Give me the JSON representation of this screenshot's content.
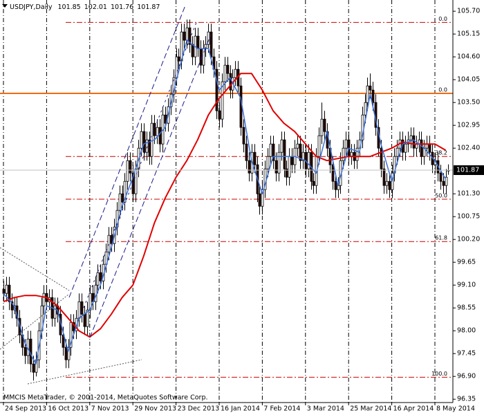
{
  "chart_data": {
    "type": "candlestick",
    "symbol": "USDJPY,Daily",
    "footer": "MMCIS MetaTrader, © 2001-2014, MetaQuotes Software Corp.",
    "xlim": [
      -1.28,
      166.67
    ],
    "ylim": [
      96.27,
      105.97
    ],
    "xticks": [
      {
        "value": 0,
        "label": "24 Sep 2013"
      },
      {
        "value": 16,
        "label": "16 Oct 2013"
      },
      {
        "value": 32,
        "label": "7 Nov 2013"
      },
      {
        "value": 48,
        "label": "29 Nov 2013"
      },
      {
        "value": 64,
        "label": "23 Dec 2013"
      },
      {
        "value": 80,
        "label": "16 Jan 2014"
      },
      {
        "value": 96,
        "label": "7 Feb 2014"
      },
      {
        "value": 112,
        "label": "3 Mar 2014"
      },
      {
        "value": 128,
        "label": "25 Mar 2014"
      },
      {
        "value": 144,
        "label": "16 Apr 2014"
      },
      {
        "value": 160,
        "label": "8 May 2014"
      }
    ],
    "yticks": [
      {
        "value": 105.7,
        "label": "105.70"
      },
      105.15,
      {
        "value": 104.6,
        "label": "104.60"
      },
      104.05,
      {
        "value": 103.5,
        "label": "103.50"
      },
      102.95,
      {
        "value": 102.4,
        "label": "102.40"
      },
      {
        "value": 101.3,
        "label": "101.30"
      },
      100.75,
      {
        "value": 100.2,
        "label": "100.20"
      },
      99.65,
      {
        "value": 99.1,
        "label": "99.10"
      },
      98.55,
      {
        "value": 98.0,
        "label": "98.00"
      },
      97.45,
      {
        "value": 96.9,
        "label": "96.90"
      },
      96.35
    ],
    "grid": "x",
    "up_color": "#ffffff",
    "down_color": "#2a0a00",
    "ohlc": [
      [
        99.0,
        99.2,
        98.7,
        98.9
      ],
      [
        98.9,
        99.3,
        98.7,
        99.1
      ],
      [
        99.1,
        99.3,
        98.5,
        98.7
      ],
      [
        98.7,
        98.9,
        98.3,
        98.5
      ],
      [
        98.5,
        98.8,
        98.4,
        98.6
      ],
      [
        98.6,
        98.8,
        98.1,
        98.3
      ],
      [
        98.3,
        98.5,
        97.7,
        97.9
      ],
      [
        97.9,
        98.1,
        97.4,
        97.6
      ],
      [
        97.6,
        97.8,
        97.2,
        97.4
      ],
      [
        97.4,
        98.0,
        97.2,
        97.8
      ],
      [
        97.8,
        98.0,
        97.0,
        97.2
      ],
      [
        97.2,
        97.4,
        96.8,
        97.0
      ],
      [
        97.0,
        97.5,
        96.9,
        97.3
      ],
      [
        97.3,
        98.2,
        97.1,
        98.0
      ],
      [
        98.0,
        98.8,
        97.8,
        98.6
      ],
      [
        98.6,
        99.1,
        98.4,
        98.9
      ],
      [
        98.9,
        99.1,
        98.5,
        98.7
      ],
      [
        98.7,
        99.0,
        98.5,
        98.8
      ],
      [
        98.8,
        99.0,
        98.1,
        98.3
      ],
      [
        98.3,
        98.8,
        98.1,
        98.6
      ],
      [
        98.6,
        98.8,
        98.2,
        98.4
      ],
      [
        98.4,
        98.6,
        97.7,
        97.9
      ],
      [
        97.9,
        98.1,
        97.4,
        97.6
      ],
      [
        97.6,
        97.8,
        97.1,
        97.3
      ],
      [
        97.3,
        97.8,
        97.1,
        97.6
      ],
      [
        97.6,
        98.4,
        97.4,
        98.2
      ],
      [
        98.2,
        98.4,
        97.8,
        98.0
      ],
      [
        98.0,
        98.5,
        97.8,
        98.3
      ],
      [
        98.3,
        98.9,
        98.1,
        98.7
      ],
      [
        98.7,
        98.9,
        98.2,
        98.4
      ],
      [
        98.4,
        98.6,
        97.9,
        98.1
      ],
      [
        98.1,
        98.7,
        97.9,
        98.5
      ],
      [
        98.5,
        99.1,
        98.3,
        98.9
      ],
      [
        98.9,
        99.1,
        98.5,
        98.7
      ],
      [
        98.7,
        99.3,
        98.5,
        99.1
      ],
      [
        99.1,
        99.6,
        98.9,
        99.4
      ],
      [
        99.4,
        99.6,
        99.0,
        99.2
      ],
      [
        99.2,
        99.8,
        99.0,
        99.6
      ],
      [
        99.6,
        100.1,
        99.4,
        99.9
      ],
      [
        99.9,
        100.5,
        99.7,
        100.3
      ],
      [
        100.3,
        100.5,
        99.9,
        100.1
      ],
      [
        100.1,
        100.7,
        99.9,
        100.5
      ],
      [
        100.5,
        101.1,
        100.3,
        100.9
      ],
      [
        100.9,
        101.5,
        100.7,
        101.3
      ],
      [
        101.3,
        101.5,
        100.9,
        101.1
      ],
      [
        101.1,
        101.8,
        100.9,
        101.6
      ],
      [
        101.6,
        102.3,
        101.4,
        102.1
      ],
      [
        102.1,
        102.3,
        101.6,
        101.8
      ],
      [
        101.8,
        102.0,
        101.1,
        101.3
      ],
      [
        101.3,
        102.1,
        101.1,
        101.9
      ],
      [
        101.9,
        102.6,
        101.7,
        102.4
      ],
      [
        102.4,
        103.0,
        102.2,
        102.8
      ],
      [
        102.8,
        103.0,
        102.1,
        102.3
      ],
      [
        102.3,
        102.8,
        102.1,
        102.6
      ],
      [
        102.6,
        102.8,
        102.0,
        102.2
      ],
      [
        102.2,
        103.2,
        102.0,
        103.0
      ],
      [
        103.0,
        103.2,
        102.5,
        102.7
      ],
      [
        102.7,
        103.1,
        102.5,
        102.9
      ],
      [
        102.9,
        103.1,
        102.3,
        102.5
      ],
      [
        102.5,
        103.4,
        102.3,
        103.2
      ],
      [
        103.2,
        103.4,
        102.8,
        103.0
      ],
      [
        103.0,
        103.6,
        102.8,
        103.4
      ],
      [
        103.4,
        103.9,
        103.2,
        103.7
      ],
      [
        103.7,
        104.3,
        103.5,
        104.1
      ],
      [
        104.1,
        104.8,
        103.9,
        104.6
      ],
      [
        104.6,
        104.8,
        104.3,
        104.5
      ],
      [
        104.5,
        105.4,
        104.3,
        105.2
      ],
      [
        105.2,
        105.4,
        104.8,
        105.0
      ],
      [
        105.0,
        105.5,
        104.8,
        105.3
      ],
      [
        105.3,
        105.5,
        104.7,
        104.9
      ],
      [
        104.9,
        105.1,
        104.4,
        104.6
      ],
      [
        104.6,
        105.3,
        104.4,
        105.1
      ],
      [
        105.1,
        105.3,
        104.6,
        104.8
      ],
      [
        104.8,
        105.0,
        104.2,
        104.4
      ],
      [
        104.4,
        105.0,
        104.2,
        104.8
      ],
      [
        104.8,
        105.1,
        104.6,
        104.9
      ],
      [
        104.9,
        105.4,
        104.7,
        105.2
      ],
      [
        105.2,
        105.4,
        104.4,
        104.6
      ],
      [
        104.6,
        104.8,
        104.1,
        104.3
      ],
      [
        104.3,
        104.5,
        103.1,
        103.3
      ],
      [
        103.3,
        103.5,
        102.9,
        103.1
      ],
      [
        103.1,
        104.2,
        102.9,
        104.0
      ],
      [
        104.0,
        104.6,
        103.8,
        104.4
      ],
      [
        104.4,
        104.6,
        104.0,
        104.2
      ],
      [
        104.2,
        104.4,
        103.6,
        103.8
      ],
      [
        103.8,
        104.3,
        103.6,
        104.1
      ],
      [
        104.1,
        104.5,
        103.9,
        104.3
      ],
      [
        104.3,
        104.5,
        103.7,
        103.9
      ],
      [
        103.9,
        104.1,
        102.7,
        102.9
      ],
      [
        102.9,
        103.1,
        102.3,
        102.5
      ],
      [
        102.5,
        102.7,
        101.9,
        102.1
      ],
      [
        102.1,
        102.3,
        101.6,
        101.8
      ],
      [
        101.8,
        102.5,
        101.6,
        102.3
      ],
      [
        102.3,
        102.5,
        101.8,
        102.0
      ],
      [
        102.0,
        102.2,
        101.1,
        101.3
      ],
      [
        101.3,
        101.5,
        100.8,
        101.0
      ],
      [
        101.0,
        101.6,
        100.8,
        101.4
      ],
      [
        101.4,
        102.1,
        101.2,
        101.9
      ],
      [
        101.9,
        102.4,
        101.7,
        102.2
      ],
      [
        102.2,
        102.7,
        102.0,
        102.5
      ],
      [
        102.5,
        102.7,
        101.9,
        102.1
      ],
      [
        102.1,
        102.3,
        101.6,
        101.8
      ],
      [
        101.8,
        102.5,
        101.6,
        102.3
      ],
      [
        102.3,
        102.8,
        102.1,
        102.6
      ],
      [
        102.6,
        102.8,
        101.7,
        101.9
      ],
      [
        101.9,
        102.1,
        101.5,
        101.7
      ],
      [
        101.7,
        102.4,
        101.5,
        102.2
      ],
      [
        102.2,
        102.4,
        101.8,
        102.0
      ],
      [
        102.0,
        102.6,
        101.8,
        102.4
      ],
      [
        102.4,
        102.7,
        102.2,
        102.5
      ],
      [
        102.5,
        102.7,
        101.9,
        102.1
      ],
      [
        102.1,
        102.5,
        101.9,
        102.3
      ],
      [
        102.3,
        102.5,
        101.7,
        101.9
      ],
      [
        101.9,
        102.5,
        101.7,
        102.3
      ],
      [
        102.3,
        102.5,
        101.4,
        101.6
      ],
      [
        101.6,
        101.8,
        101.3,
        101.5
      ],
      [
        101.5,
        102.4,
        101.3,
        102.2
      ],
      [
        102.2,
        102.9,
        102.0,
        102.7
      ],
      [
        102.7,
        103.5,
        102.5,
        103.1
      ],
      [
        103.1,
        103.3,
        102.6,
        102.8
      ],
      [
        102.8,
        103.0,
        102.2,
        102.4
      ],
      [
        102.4,
        102.6,
        101.8,
        102.0
      ],
      [
        102.0,
        102.2,
        101.4,
        101.6
      ],
      [
        101.6,
        101.8,
        101.2,
        101.4
      ],
      [
        101.4,
        101.7,
        101.2,
        101.5
      ],
      [
        101.5,
        102.3,
        101.3,
        102.1
      ],
      [
        102.1,
        102.6,
        101.9,
        102.4
      ],
      [
        102.4,
        102.8,
        102.2,
        102.6
      ],
      [
        102.6,
        102.8,
        102.0,
        102.2
      ],
      [
        102.2,
        102.5,
        102.0,
        102.3
      ],
      [
        102.3,
        102.5,
        101.9,
        102.1
      ],
      [
        102.1,
        102.6,
        101.9,
        102.4
      ],
      [
        102.4,
        102.8,
        102.2,
        102.6
      ],
      [
        102.6,
        103.4,
        102.4,
        103.2
      ],
      [
        103.2,
        103.7,
        103.0,
        103.5
      ],
      [
        103.5,
        104.1,
        103.3,
        103.9
      ],
      [
        103.9,
        104.2,
        103.6,
        103.8
      ],
      [
        103.8,
        104.0,
        103.3,
        103.5
      ],
      [
        103.5,
        103.7,
        102.7,
        102.9
      ],
      [
        102.9,
        103.1,
        102.2,
        102.4
      ],
      [
        102.4,
        102.6,
        101.7,
        101.9
      ],
      [
        101.9,
        102.1,
        101.3,
        101.5
      ],
      [
        101.5,
        101.8,
        101.3,
        101.6
      ],
      [
        101.6,
        101.8,
        101.2,
        101.4
      ],
      [
        101.4,
        102.0,
        101.2,
        101.8
      ],
      [
        101.8,
        102.4,
        101.6,
        102.2
      ],
      [
        102.2,
        102.6,
        102.0,
        102.4
      ],
      [
        102.4,
        102.8,
        102.2,
        102.6
      ],
      [
        102.6,
        102.8,
        102.1,
        102.3
      ],
      [
        102.3,
        102.7,
        102.1,
        102.5
      ],
      [
        102.5,
        102.8,
        102.3,
        102.6
      ],
      [
        102.6,
        102.9,
        102.4,
        102.7
      ],
      [
        102.7,
        102.9,
        102.2,
        102.4
      ],
      [
        102.4,
        102.7,
        102.2,
        102.5
      ],
      [
        102.5,
        102.8,
        102.3,
        102.6
      ],
      [
        102.6,
        102.8,
        102.0,
        102.2
      ],
      [
        102.2,
        102.6,
        102.0,
        102.4
      ],
      [
        102.4,
        102.7,
        102.2,
        102.5
      ],
      [
        102.5,
        102.7,
        102.1,
        102.3
      ],
      [
        102.3,
        102.5,
        101.8,
        102.0
      ],
      [
        102.0,
        102.3,
        101.8,
        102.1
      ],
      [
        102.1,
        102.3,
        101.6,
        101.8
      ],
      [
        101.8,
        102.0,
        101.4,
        101.6
      ],
      [
        101.6,
        101.8,
        101.3,
        101.5
      ],
      [
        101.5,
        101.9,
        101.3,
        101.7
      ],
      [
        101.85,
        102.01,
        101.76,
        101.87
      ]
    ],
    "x": [
      0,
      4,
      8,
      12,
      16,
      20,
      24,
      28,
      32,
      36,
      40,
      44,
      48,
      52,
      56,
      60,
      64,
      68,
      72,
      76,
      80,
      84,
      88,
      92,
      96,
      100,
      104,
      108,
      112,
      116,
      120,
      124,
      128,
      132,
      136,
      140,
      144,
      148,
      152,
      156,
      160,
      164
    ],
    "series": [
      {
        "color": "#e00000",
        "values": [
          98.7,
          98.8,
          98.85,
          98.85,
          98.8,
          98.6,
          98.3,
          98.0,
          97.85,
          98.05,
          98.4,
          98.8,
          99.1,
          99.8,
          100.6,
          101.2,
          101.7,
          102.1,
          102.6,
          103.2,
          103.6,
          103.9,
          104.2,
          104.2,
          103.8,
          103.3,
          103.0,
          102.8,
          102.5,
          102.2,
          102.1,
          102.15,
          102.2,
          102.2,
          102.2,
          102.3,
          102.4,
          102.55,
          102.5,
          102.5,
          102.5,
          102.35
        ]
      },
      {
        "color": "#3a6fd8",
        "values": [
          98.9,
          98.6,
          97.7,
          97.2,
          98.6,
          98.5,
          97.5,
          98.3,
          98.5,
          99.1,
          100.0,
          101.0,
          101.7,
          102.5,
          102.6,
          102.9,
          104.0,
          105.0,
          104.8,
          104.8,
          103.8,
          104.1,
          103.6,
          102.1,
          101.3,
          102.2,
          102.2,
          102.2,
          102.1,
          101.8,
          102.8,
          101.5,
          102.4,
          102.3,
          103.7,
          102.5,
          101.6,
          102.5,
          102.6,
          102.4,
          102.1,
          101.65
        ]
      }
    ],
    "hline": {
      "price": 103.72,
      "color": "#f26a10"
    },
    "fib_levels": [
      {
        "label": "0.0",
        "price": 105.43
      },
      {
        "label": "0.0",
        "price": 103.72
      },
      {
        "label": "38.2",
        "price": 102.2
      },
      {
        "label": "50.0",
        "price": 101.17
      },
      {
        "label": "61.8",
        "price": 100.15
      },
      {
        "label": "100.0",
        "price": 96.88
      }
    ],
    "fib_color": "#cc0000"
  }
}
